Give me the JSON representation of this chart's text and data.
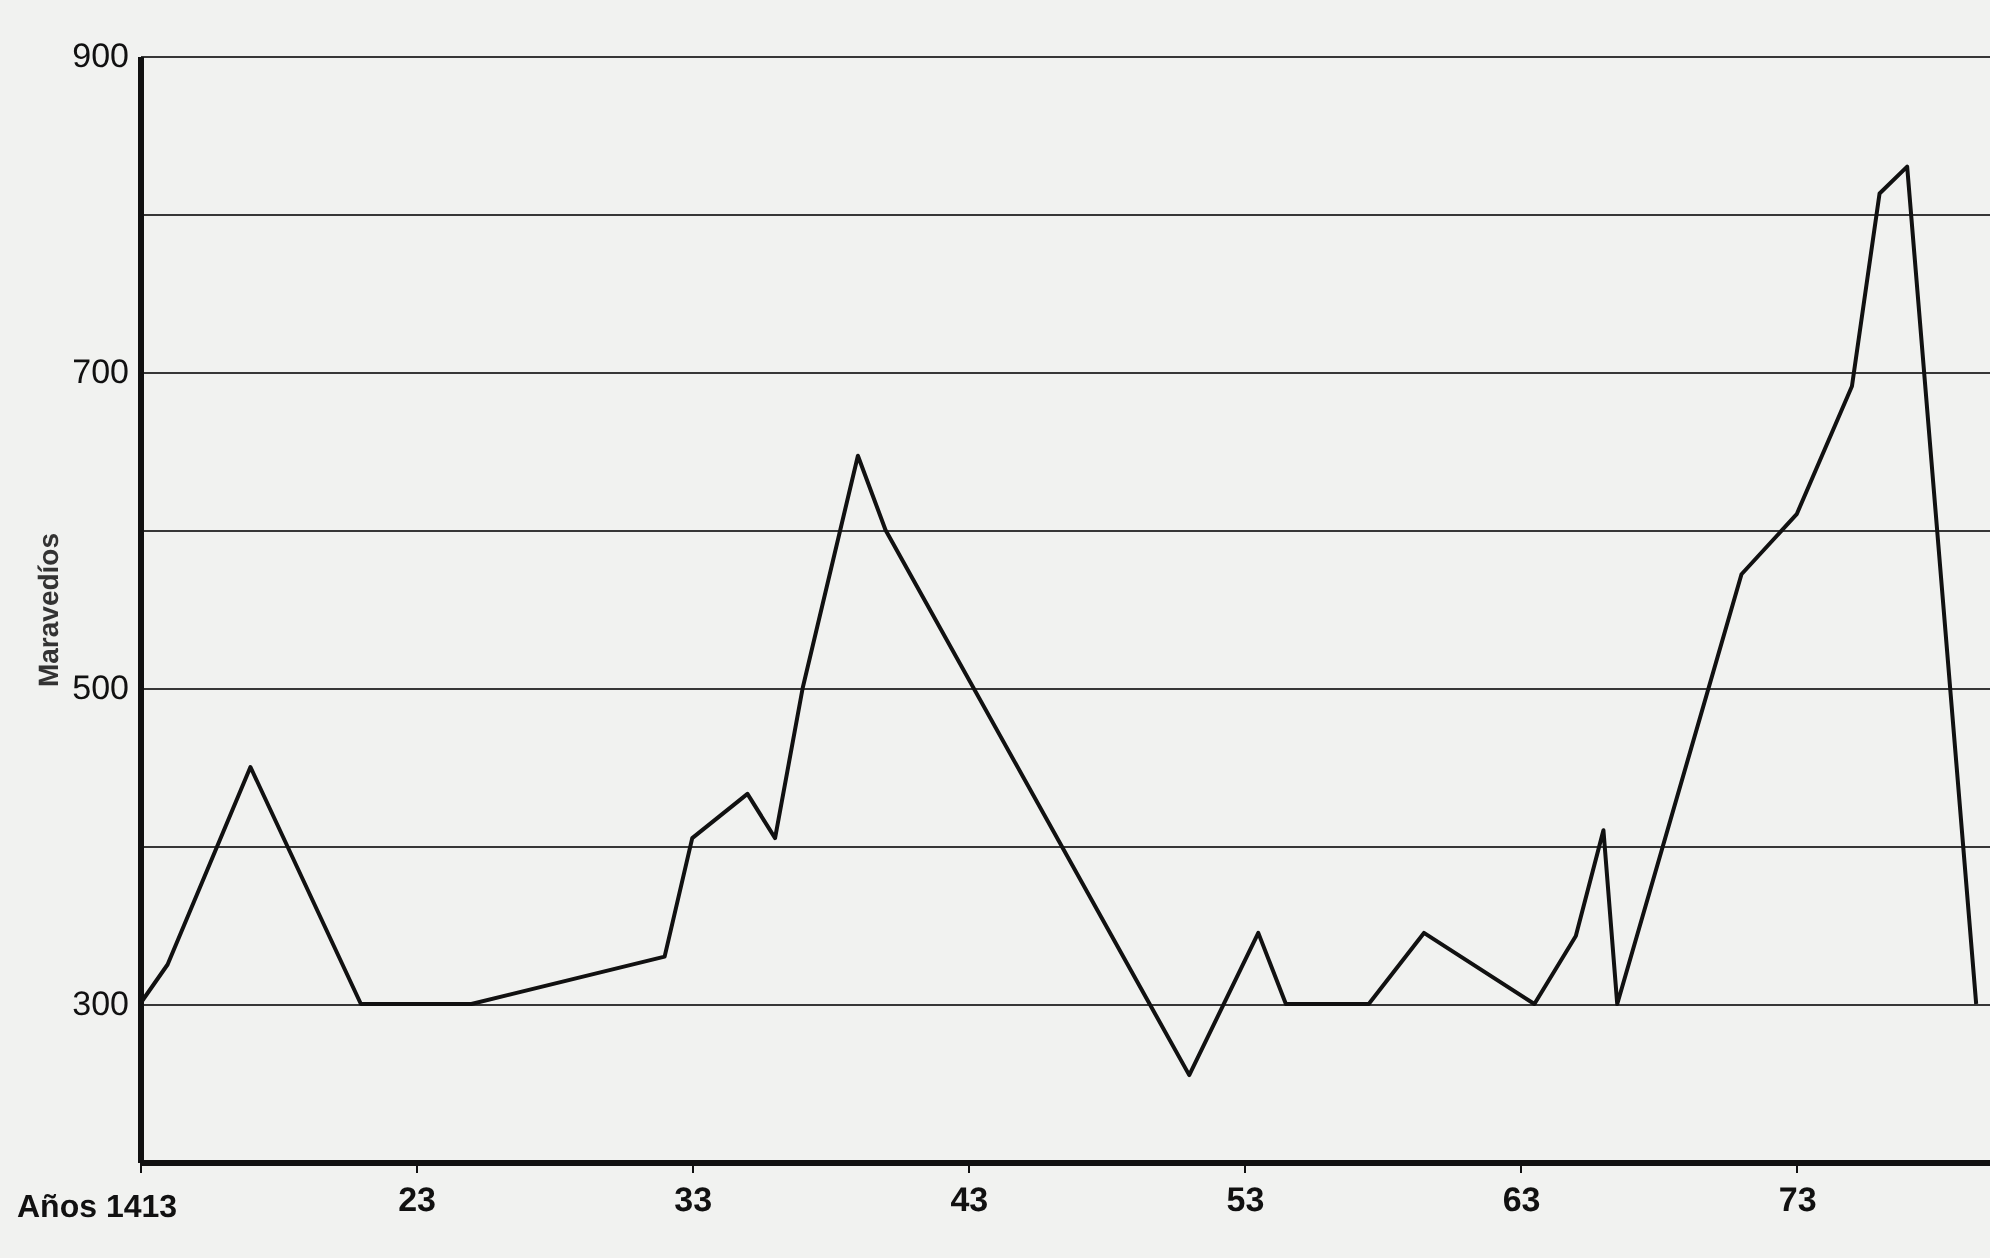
{
  "chart_data": {
    "type": "line",
    "xlabel": "Años 1413",
    "ylabel": "Maravedíos",
    "x": [
      13,
      14,
      17,
      21,
      25,
      32,
      33,
      35,
      36,
      37,
      39,
      40,
      51,
      53.5,
      54.5,
      57.5,
      59.5,
      63.5,
      65,
      66,
      66.5,
      71,
      73,
      75,
      76,
      77,
      79.5
    ],
    "series": [
      {
        "color": "#111111",
        "values": [
          300,
          325,
          450,
          300,
          300,
          330,
          405,
          433,
          405,
          500,
          647,
          600,
          255,
          345,
          300,
          300,
          345,
          300,
          343,
          410,
          300,
          572,
          610,
          691,
          813,
          830,
          300
        ]
      }
    ],
    "xlim": [
      13,
      80
    ],
    "xticks": [
      {
        "value": 13,
        "label": null
      },
      23,
      33,
      43,
      53,
      63,
      73
    ],
    "ylim": [
      200,
      900
    ],
    "yticks": [
      {
        "value": 200,
        "label": null
      },
      300,
      {
        "value": 400,
        "label": null
      },
      500,
      {
        "value": 600,
        "label": null
      },
      700,
      {
        "value": 800,
        "label": null
      },
      900
    ],
    "grid": "y",
    "line_style": "solid"
  }
}
